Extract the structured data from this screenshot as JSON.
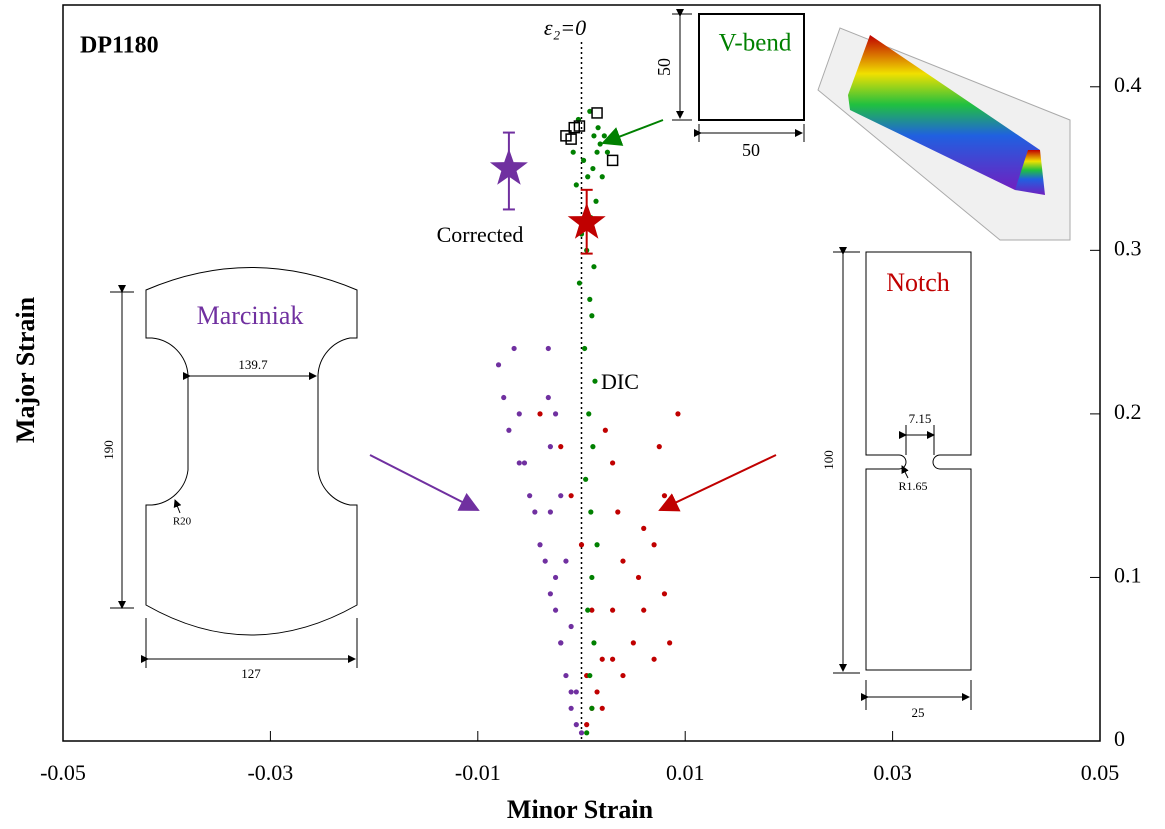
{
  "chart_data": {
    "type": "scatter",
    "xlabel": "Minor Strain",
    "ylabel": "Major Strain",
    "xlim": [
      -0.05,
      0.05
    ],
    "ylim": [
      0,
      0.45
    ],
    "xticks": [
      -0.05,
      -0.03,
      -0.01,
      0.01,
      0.03,
      0.05
    ],
    "yticks": [
      0,
      0.1,
      0.2,
      0.3,
      0.4
    ],
    "reference_x": 0,
    "annotations": [
      "DP1180",
      "ε₂=0",
      "V-bend",
      "50",
      "50",
      "Corrected",
      "DIC",
      "Marciniak",
      "139.7",
      "190",
      "R20",
      "127",
      "Notch",
      "7.15",
      "100",
      "R1.65",
      "25"
    ],
    "series": [
      {
        "color": "#7030a0",
        "marker": "dot",
        "x": [
          0,
          -0.001,
          -0.002,
          -0.003,
          -0.004,
          -0.005,
          -0.006,
          -0.007,
          -0.0075,
          -0.008,
          -0.0005,
          -0.0015,
          -0.0025,
          -0.0035,
          -0.0045,
          -0.0055,
          -0.006,
          -0.0065,
          -0.001,
          -0.002,
          -0.0025,
          -0.003,
          -0.003,
          -0.0032,
          -0.0032,
          -0.0005,
          -0.001,
          -0.0015,
          -0.002,
          -0.0025
        ],
        "y": [
          0.005,
          0.03,
          0.06,
          0.09,
          0.12,
          0.15,
          0.17,
          0.19,
          0.21,
          0.23,
          0.01,
          0.04,
          0.08,
          0.11,
          0.14,
          0.17,
          0.2,
          0.24,
          0.02,
          0.06,
          0.1,
          0.14,
          0.18,
          0.21,
          0.24,
          0.03,
          0.07,
          0.11,
          0.15,
          0.2
        ]
      },
      {
        "color": "#c00000",
        "marker": "dot",
        "x": [
          0.0005,
          0.0015,
          0.003,
          0.005,
          0.007,
          0.0085,
          0.008,
          0.007,
          0.008,
          0.0075,
          0.0093,
          0.001,
          0.002,
          0.003,
          0.004,
          0.0035,
          0.003,
          0.0023,
          0.0005,
          0.001,
          0,
          -0.001,
          -0.002,
          -0.004,
          0.002,
          0.004,
          0.006,
          0.0055,
          0.006
        ],
        "y": [
          0.01,
          0.03,
          0.05,
          0.06,
          0.05,
          0.06,
          0.09,
          0.12,
          0.15,
          0.18,
          0.2,
          0.02,
          0.05,
          0.08,
          0.11,
          0.14,
          0.17,
          0.19,
          0.04,
          0.08,
          0.12,
          0.15,
          0.18,
          0.2,
          0.02,
          0.04,
          0.08,
          0.1,
          0.13
        ]
      },
      {
        "color": "#008000",
        "marker": "dot",
        "x": [
          0.0005,
          0.001,
          0.0008,
          0.0012,
          0.0006,
          0.001,
          0.0015,
          0.0009,
          0.0004,
          0.0011,
          0.0007,
          0.0013,
          0.0003,
          0.001,
          0.0008,
          -0.0002,
          0.0012,
          0.0005,
          0,
          0.0009,
          0.0014,
          -0.0005,
          0.0006,
          0.0011,
          0.0002,
          -0.0008,
          0.0015,
          0.0018,
          0.0012,
          0.0022,
          0.0016,
          -0.0003,
          0.0008,
          0.002,
          0.0025
        ],
        "y": [
          0.005,
          0.02,
          0.04,
          0.06,
          0.08,
          0.1,
          0.12,
          0.14,
          0.16,
          0.18,
          0.2,
          0.22,
          0.24,
          0.26,
          0.27,
          0.28,
          0.29,
          0.3,
          0.31,
          0.32,
          0.33,
          0.34,
          0.345,
          0.35,
          0.355,
          0.36,
          0.36,
          0.365,
          0.37,
          0.37,
          0.375,
          0.38,
          0.385,
          0.345,
          0.36
        ]
      },
      {
        "color": "#000000",
        "marker": "square",
        "x": [
          -0.0015,
          -0.001,
          -0.0007,
          -0.0002,
          0.0015,
          0.003
        ],
        "y": [
          0.37,
          0.368,
          0.375,
          0.376,
          0.384,
          0.355
        ]
      },
      {
        "color": "#7030a0",
        "marker": "star",
        "x": [
          -0.007
        ],
        "y": [
          0.35
        ],
        "ylow": [
          0.325
        ],
        "yhigh": [
          0.372
        ]
      },
      {
        "color": "#c00000",
        "marker": "star",
        "x": [
          0.0005
        ],
        "y": [
          0.317
        ],
        "ylow": [
          0.298
        ],
        "yhigh": [
          0.337
        ]
      }
    ]
  }
}
